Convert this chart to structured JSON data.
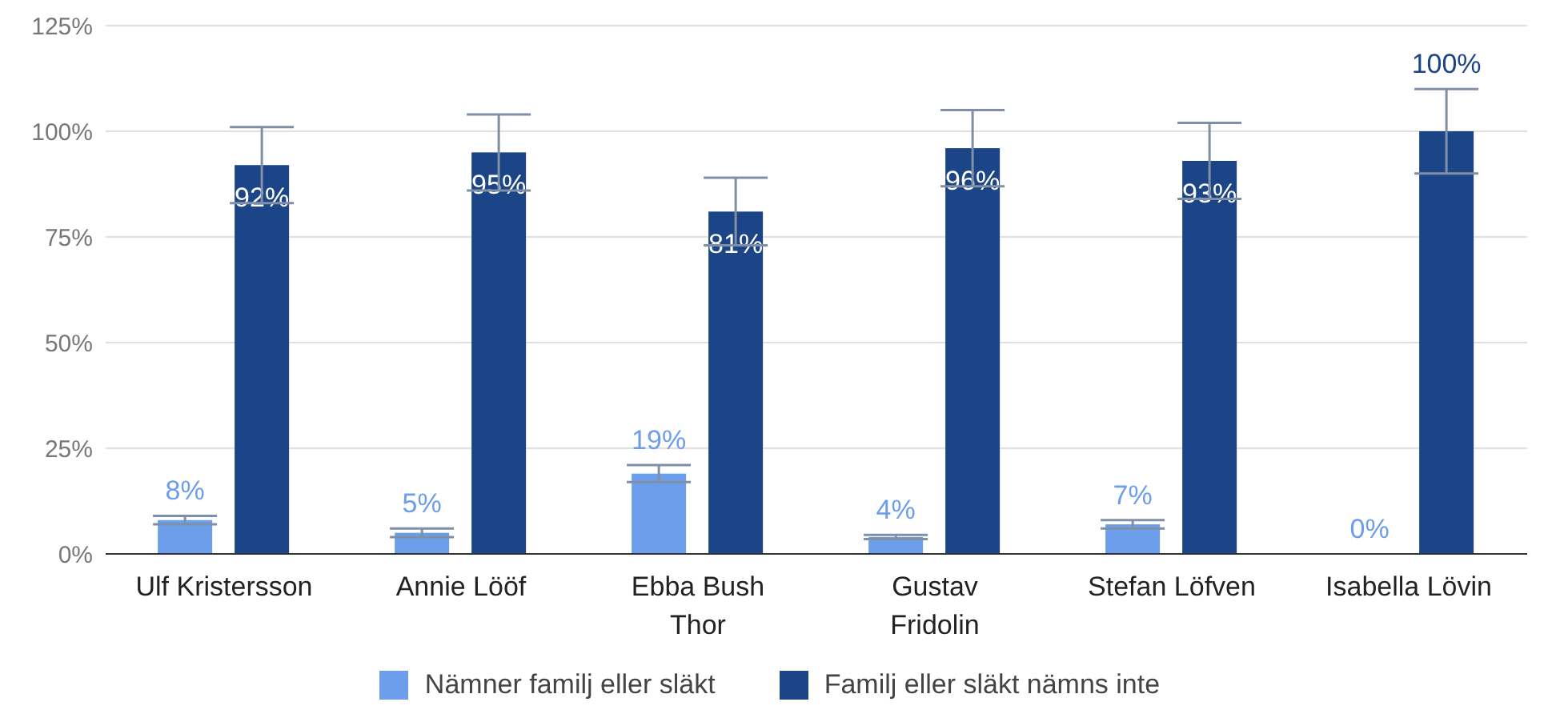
{
  "chart_data": {
    "type": "bar",
    "categories": [
      "Ulf Kristersson",
      "Annie Lööf",
      "Ebba Bush Thor",
      "Gustav Fridolin",
      "Stefan Löfven",
      "Isabella Lövin"
    ],
    "series": [
      {
        "name": "Nämner familj eller släkt",
        "color": "#6d9eeb",
        "values": [
          8,
          5,
          19,
          4,
          7,
          0
        ],
        "errors": [
          1,
          1,
          2,
          0.5,
          1,
          0
        ]
      },
      {
        "name": "Familj eller släkt nämns inte",
        "color": "#1c4587",
        "values": [
          92,
          95,
          81,
          96,
          93,
          100
        ],
        "errors": [
          9,
          9,
          8,
          9,
          9,
          10
        ]
      }
    ],
    "ylim": [
      0,
      125
    ],
    "yticks": [
      {
        "value": 0,
        "label": "0%"
      },
      {
        "value": 25,
        "label": "25%"
      },
      {
        "value": 50,
        "label": "50%"
      },
      {
        "value": 75,
        "label": "75%"
      },
      {
        "value": 100,
        "label": "100%"
      },
      {
        "value": 125,
        "label": "125%"
      }
    ],
    "value_labels": [
      [
        "8%",
        "5%",
        "19%",
        "4%",
        "7%",
        "0%"
      ],
      [
        "92%",
        "95%",
        "81%",
        "96%",
        "93%",
        "100%"
      ]
    ],
    "grid": "y",
    "legend": "bottom"
  }
}
